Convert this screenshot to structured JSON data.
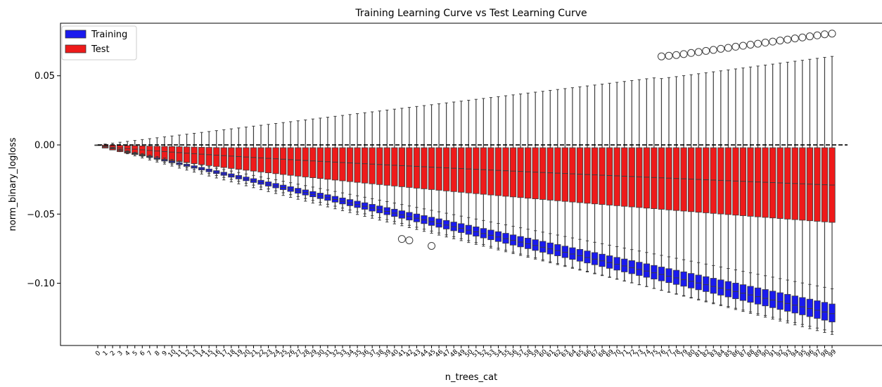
{
  "chart_data": {
    "type": "box",
    "title": "Training Learning Curve vs Test Learning Curve",
    "xlabel": "n_trees_cat",
    "ylabel": "norm_binary_logloss",
    "ylim": [
      -0.145,
      0.088
    ],
    "yticks": [
      0.05,
      0.0,
      -0.05,
      -0.1
    ],
    "ytick_labels": [
      "0.05",
      "0.00",
      "−0.05",
      "−0.10"
    ],
    "categories": [
      "0",
      "1",
      "2",
      "3",
      "4",
      "5",
      "6",
      "7",
      "8",
      "9",
      "10",
      "11",
      "12",
      "13",
      "14",
      "15",
      "16",
      "17",
      "18",
      "19",
      "20",
      "21",
      "22",
      "23",
      "24",
      "25",
      "26",
      "27",
      "28",
      "29",
      "30",
      "31",
      "32",
      "33",
      "34",
      "35",
      "36",
      "37",
      "38",
      "39",
      "40",
      "41",
      "42",
      "43",
      "44",
      "45",
      "46",
      "47",
      "48",
      "49",
      "50",
      "51",
      "52",
      "53",
      "54",
      "55",
      "56",
      "57",
      "58",
      "59",
      "60",
      "61",
      "62",
      "63",
      "64",
      "65",
      "66",
      "67",
      "68",
      "69",
      "70",
      "71",
      "72",
      "73",
      "74",
      "75",
      "76",
      "77",
      "78",
      "79",
      "80",
      "81",
      "82",
      "83",
      "84",
      "85",
      "86",
      "87",
      "88",
      "89",
      "90",
      "91",
      "92",
      "93",
      "94",
      "95",
      "96",
      "97",
      "98",
      "99"
    ],
    "reference_line": {
      "y": 0.0,
      "style": "dashed",
      "color": "#000000"
    },
    "legend": {
      "placement": "top-left"
    },
    "series": [
      {
        "name": "Training",
        "color": "#1a1aee",
        "whisker_low": {
          "at_first": 0.0,
          "at_last": -0.137
        },
        "q1": {
          "at_first": 0.0,
          "at_last": -0.128
        },
        "median": {
          "at_first": 0.0,
          "at_last": -0.122
        },
        "q3": {
          "at_first": 0.0,
          "at_last": -0.115
        },
        "whisker_high": {
          "at_first": 0.0,
          "at_last": -0.104
        },
        "outliers": [
          {
            "x": "41",
            "y": -0.068
          },
          {
            "x": "42",
            "y": -0.069
          },
          {
            "x": "45",
            "y": -0.073
          }
        ]
      },
      {
        "name": "Test",
        "color": "#ee1a1a",
        "whisker_low": {
          "at_first": 0.0,
          "at_last": -0.135
        },
        "q1": {
          "at_first": 0.0,
          "at_last": -0.056
        },
        "median": {
          "at_first": 0.0,
          "at_last": -0.029
        },
        "q3": {
          "at_first": 0.0,
          "at_last": -0.002
        },
        "whisker_high": {
          "at_first": 0.0,
          "at_last": 0.064
        },
        "outliers": [
          {
            "x": "76",
            "y": 0.064
          },
          {
            "x": "77",
            "y": 0.0645
          },
          {
            "x": "78",
            "y": 0.065
          },
          {
            "x": "79",
            "y": 0.0657
          },
          {
            "x": "80",
            "y": 0.0665
          },
          {
            "x": "81",
            "y": 0.0672
          },
          {
            "x": "82",
            "y": 0.068
          },
          {
            "x": "83",
            "y": 0.0687
          },
          {
            "x": "84",
            "y": 0.0695
          },
          {
            "x": "85",
            "y": 0.0702
          },
          {
            "x": "86",
            "y": 0.071
          },
          {
            "x": "87",
            "y": 0.0717
          },
          {
            "x": "88",
            "y": 0.0725
          },
          {
            "x": "89",
            "y": 0.0732
          },
          {
            "x": "90",
            "y": 0.074
          },
          {
            "x": "91",
            "y": 0.0747
          },
          {
            "x": "92",
            "y": 0.0755
          },
          {
            "x": "93",
            "y": 0.0762
          },
          {
            "x": "94",
            "y": 0.077
          },
          {
            "x": "95",
            "y": 0.0777
          },
          {
            "x": "96",
            "y": 0.0785
          },
          {
            "x": "97",
            "y": 0.0792
          },
          {
            "x": "98",
            "y": 0.08
          },
          {
            "x": "99",
            "y": 0.0805
          }
        ]
      }
    ]
  }
}
